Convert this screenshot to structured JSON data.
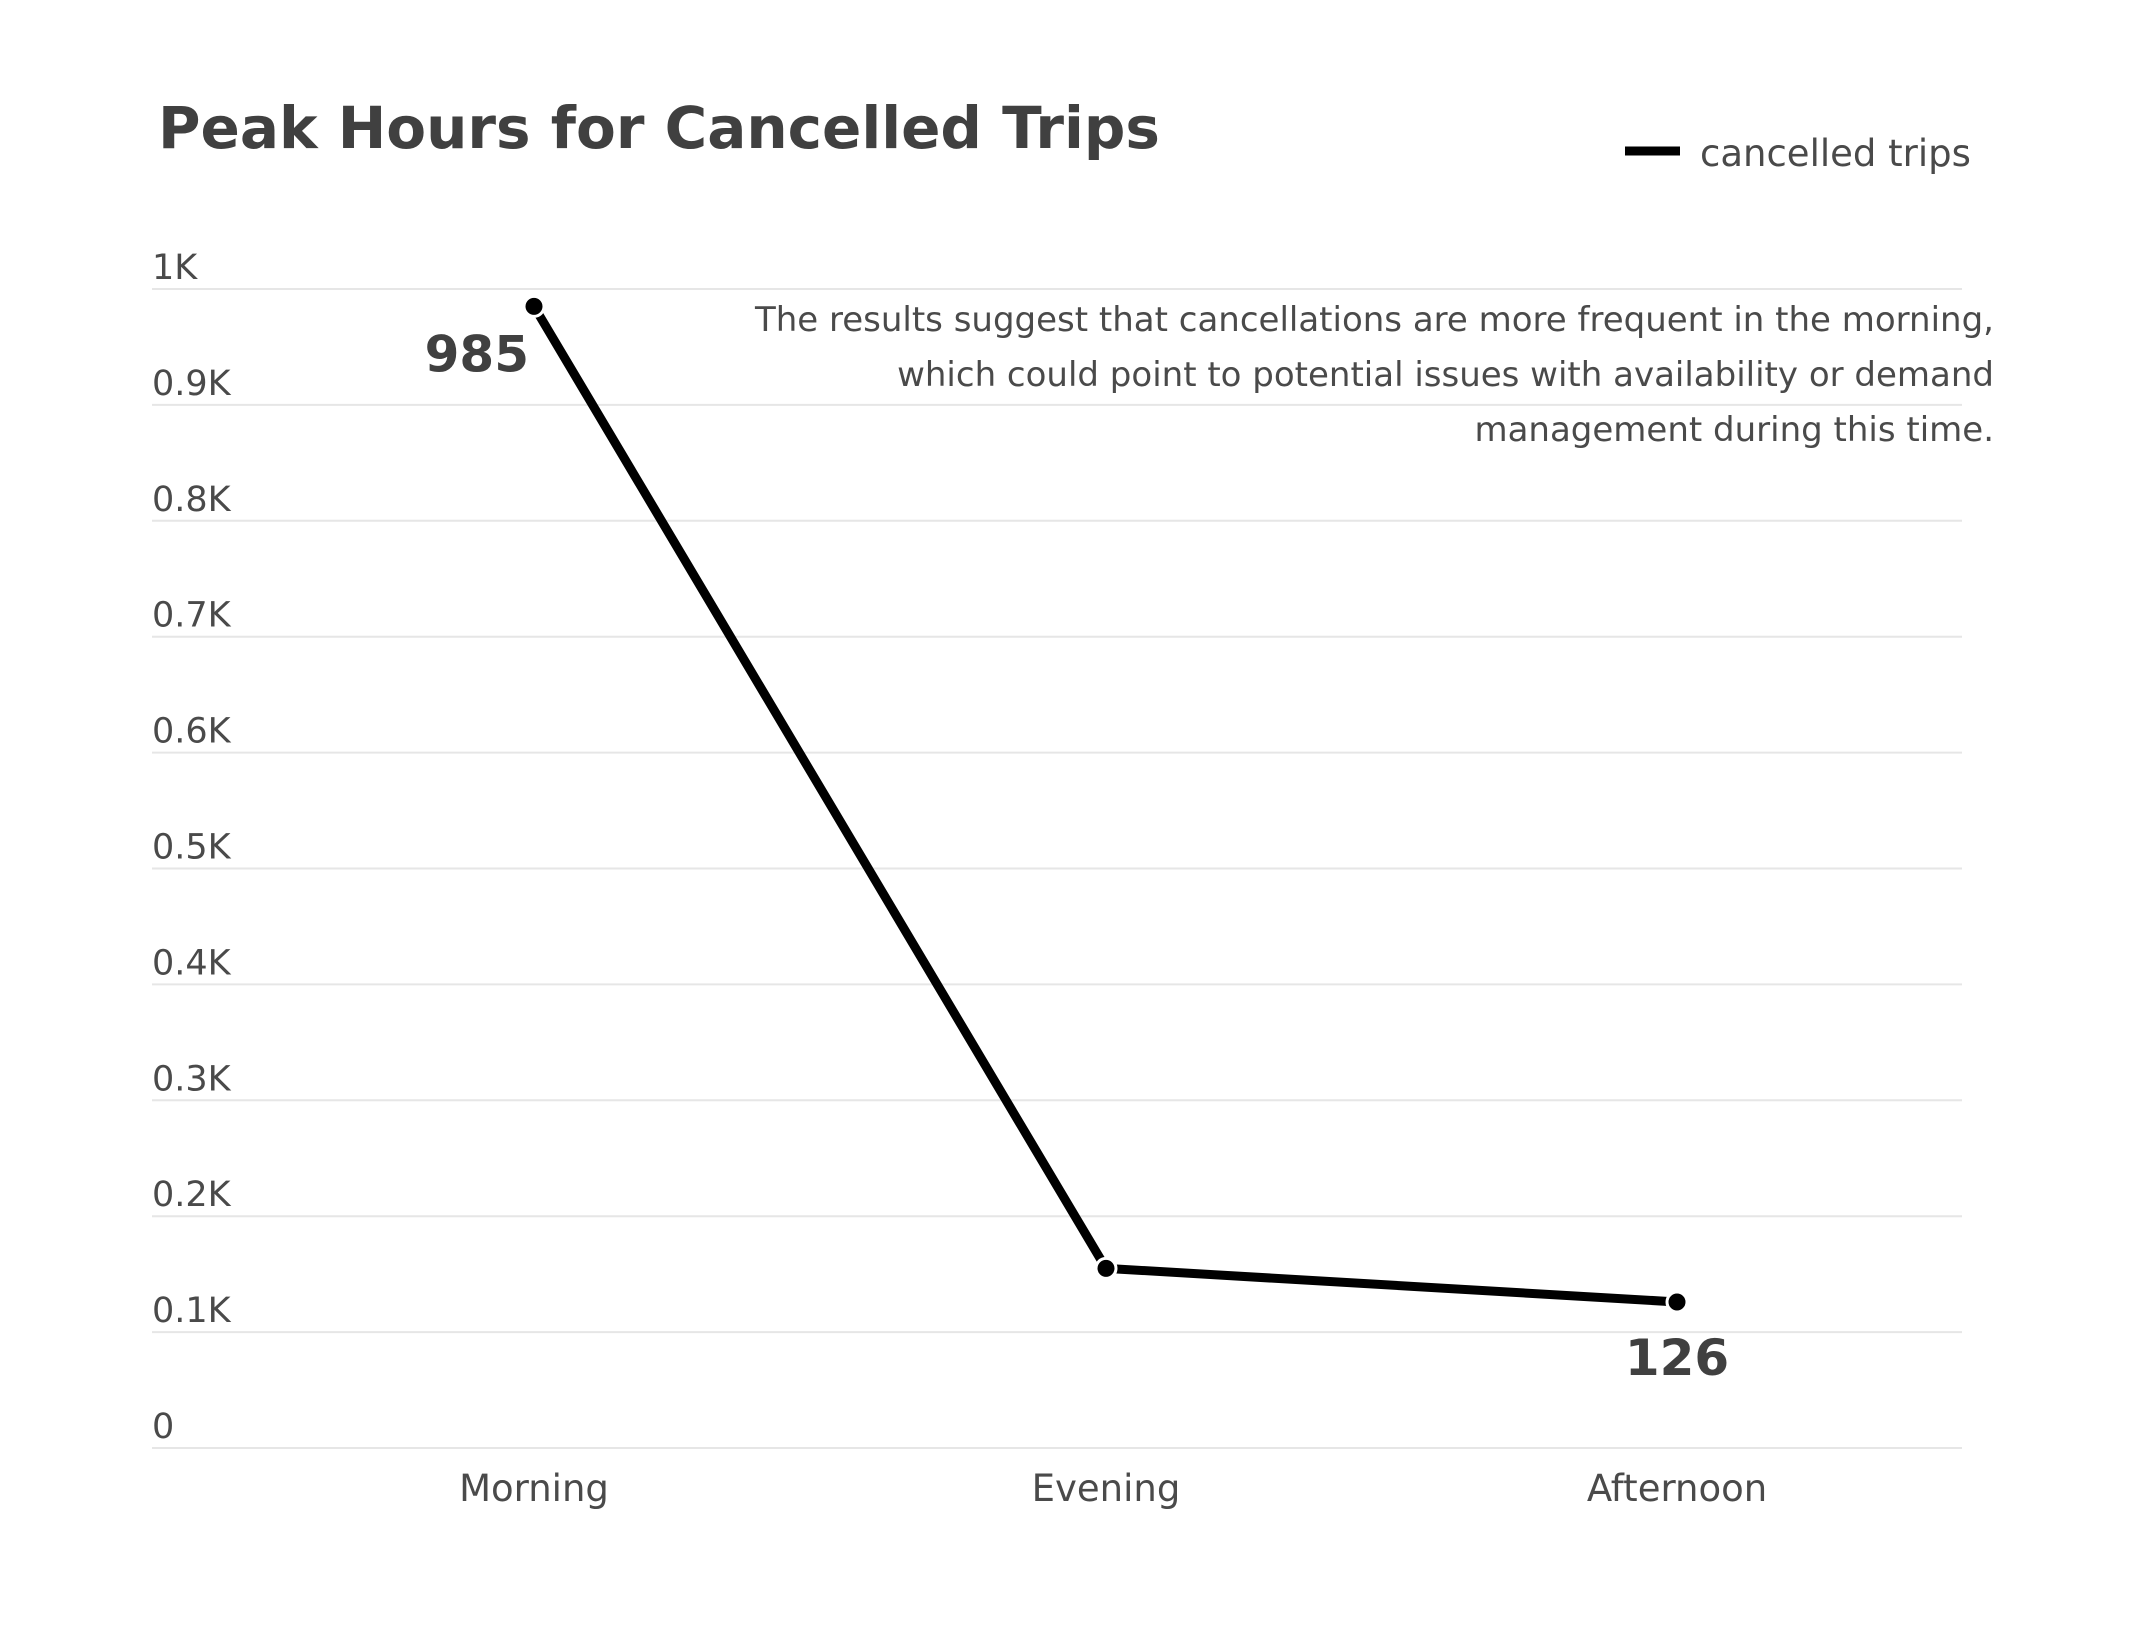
{
  "chart_data": {
    "type": "line",
    "title": "Peak Hours for Cancelled Trips",
    "xlabel": "",
    "ylabel": "",
    "categories": [
      "Morning",
      "Evening",
      "Afternoon"
    ],
    "series": [
      {
        "name": "cancelled trips",
        "values": [
          985,
          155,
          126
        ],
        "color": "#000000"
      }
    ],
    "ylim": [
      0,
      1000
    ],
    "y_ticks": [
      {
        "value": 0,
        "label": "0"
      },
      {
        "value": 100,
        "label": "0.1K"
      },
      {
        "value": 200,
        "label": "0.2K"
      },
      {
        "value": 300,
        "label": "0.3K"
      },
      {
        "value": 400,
        "label": "0.4K"
      },
      {
        "value": 500,
        "label": "0.5K"
      },
      {
        "value": 600,
        "label": "0.6K"
      },
      {
        "value": 700,
        "label": "0.7K"
      },
      {
        "value": 800,
        "label": "0.8K"
      },
      {
        "value": 900,
        "label": "0.9K"
      },
      {
        "value": 1000,
        "label": "1K"
      }
    ],
    "data_labels": [
      {
        "index": 0,
        "text": "985"
      },
      {
        "index": 2,
        "text": "126"
      }
    ],
    "annotation": [
      "The results suggest that cancellations are more frequent in the morning,",
      "which could point to potential issues with availability or demand",
      "management during this time."
    ],
    "grid": true,
    "legend_position": "top-right"
  }
}
